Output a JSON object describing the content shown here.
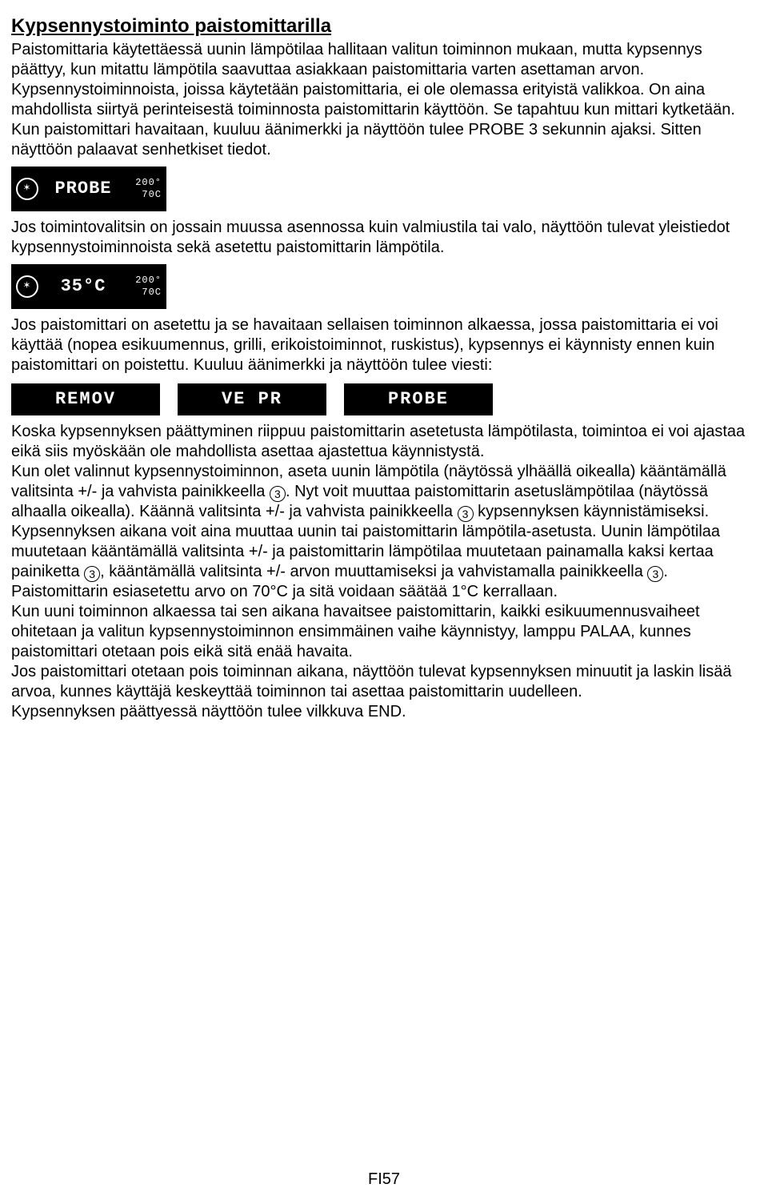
{
  "title": "Kypsennystoiminto paistomittarilla",
  "p1": "Paistomittaria käytettäessä uunin lämpötilaa hallitaan valitun toiminnon mukaan, mutta kypsennys päättyy, kun mitattu lämpötila saavuttaa asiakkaan paistomittaria varten asettaman arvon. Kypsennystoiminnoista, joissa käytetään paistomittaria, ei ole olemassa erityistä valikkoa. On aina mahdollista siirtyä perinteisestä toiminnosta paistomittarin käyttöön. Se tapahtuu kun mittari kytketään. Kun paistomittari havaitaan, kuuluu äänimerkki ja näyttöön tulee PROBE 3 sekunnin ajaksi. Sitten näyttöön palaavat senhetkiset tiedot.",
  "display1": {
    "icon": "✶",
    "main": "PROBE",
    "top": "200°",
    "bottom": "70C"
  },
  "p2": "Jos toimintovalitsin on jossain muussa asennossa kuin valmiustila tai valo, näyttöön tulevat yleistiedot kypsennystoiminnoista sekä asetettu paistomittarin lämpötila.",
  "display2": {
    "icon": "✶",
    "main": "35°C",
    "top": "200°",
    "bottom": "70C"
  },
  "p3": "Jos paistomittari on asetettu ja se havaitaan sellaisen toiminnon alkaessa, jossa paistomittaria ei voi käyttää (nopea esikuumennus, grilli, erikoistoiminnot, ruskistus), kypsennys ei käynnisty ennen kuin paistomittari on poistettu. Kuuluu äänimerkki ja näyttöön tulee viesti:",
  "msgs": {
    "m1": "REMOV",
    "m2": "VE PR",
    "m3": "PROBE"
  },
  "p4a": "Koska kypsennyksen päättyminen riippuu paistomittarin asetetusta lämpötilasta, toimintoa ei voi ajastaa eikä siis myöskään ole mahdollista asettaa ajastettua käynnistystä.",
  "p4b_1": "Kun olet valinnut kypsennystoiminnon, aseta uunin lämpötila (näytössä ylhäällä oikealla) kääntämällä valitsinta +/- ja vahvista painikkeella ",
  "p4b_2": ". Nyt voit muuttaa paistomittarin asetuslämpötilaa (näytössä alhaalla oikealla). Käännä valitsinta +/- ja vahvista painikkeella ",
  "p4b_3": " kypsennyksen käynnistämiseksi. Kypsennyksen aikana voit aina muuttaa uunin tai paistomittarin lämpötila-asetusta. Uunin lämpötilaa muutetaan kääntämällä valitsinta +/- ja paistomittarin lämpötilaa muutetaan painamalla kaksi kertaa painiketta ",
  "p4b_4": ", kääntämällä valitsinta +/- arvon muuttamiseksi ja vahvistamalla painikkeella ",
  "p4b_5": ". Paistomittarin esiasetettu arvo on 70°C ja sitä voidaan säätää 1°C kerrallaan.",
  "p5": "Kun uuni toiminnon alkaessa tai sen aikana havaitsee paistomittarin, kaikki esikuumennusvaiheet ohitetaan ja valitun kypsennystoiminnon ensimmäinen vaihe käynnistyy, lamppu PALAA, kunnes paistomittari otetaan pois eikä sitä enää havaita.",
  "p6": "Jos paistomittari otetaan pois toiminnan aikana, näyttöön tulevat kypsennyksen minuutit ja laskin lisää arvoa, kunnes käyttäjä keskeyttää toiminnon tai asettaa paistomittarin uudelleen.",
  "p7": "Kypsennyksen päättyessä näyttöön tulee vilkkuva END.",
  "circled": "3",
  "footer": "FI57"
}
